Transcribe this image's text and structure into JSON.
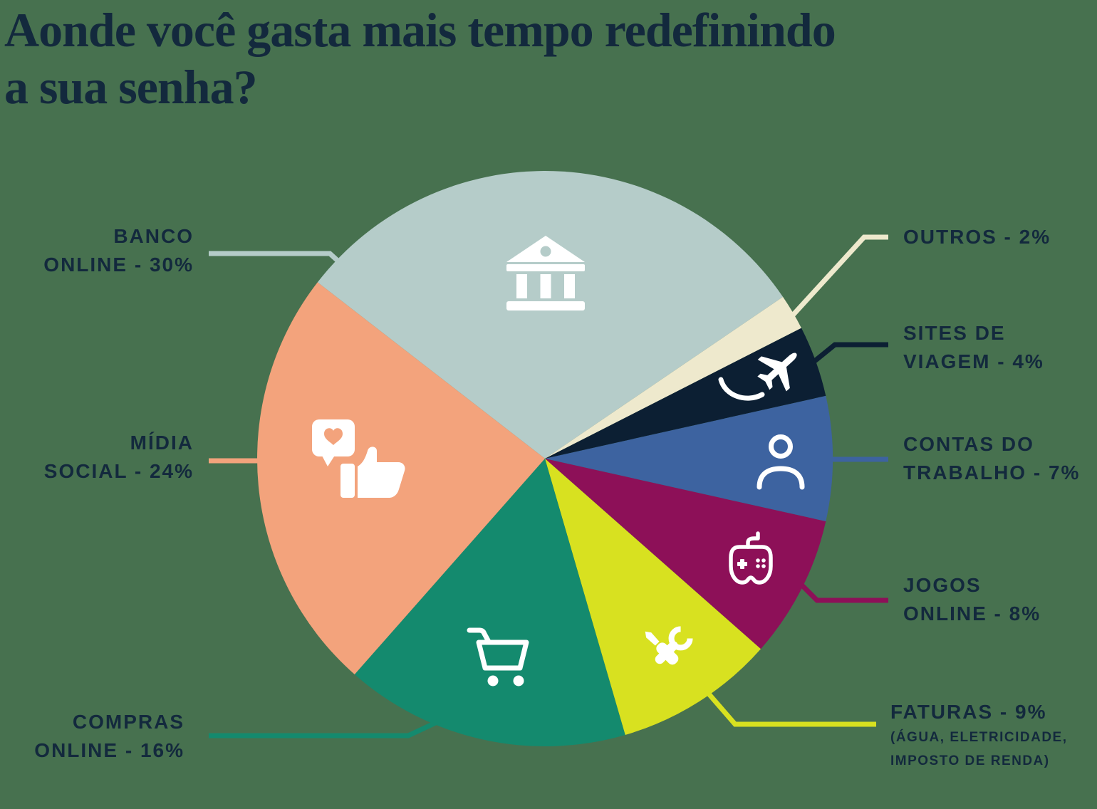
{
  "background_color": "#47714F",
  "text_color": "#13293D",
  "icon_color": "#FFFFFF",
  "title": {
    "line1": "Aonde você gasta mais tempo redefinindo",
    "line2": "a sua senha?"
  },
  "chart_data": {
    "type": "pie",
    "title": "Aonde você gasta mais tempo redefinindo a sua senha?",
    "legend_position": "around-callouts",
    "start_angle_deg": 307.8,
    "total": 100,
    "slices": [
      {
        "label": "BANCO ONLINE",
        "value": 30,
        "color": "#B5CCC9",
        "icon": "bank-icon",
        "lines": [
          "BANCO",
          "ONLINE - 30%"
        ]
      },
      {
        "label": "OUTROS",
        "value": 2,
        "color": "#EEE9CD",
        "icon": null,
        "lines": [
          "OUTROS - 2%"
        ]
      },
      {
        "label": "SITES DE VIAGEM",
        "value": 4,
        "color": "#0C1F33",
        "icon": "airplane-icon",
        "lines": [
          "SITES DE",
          "VIAGEM - 4%"
        ]
      },
      {
        "label": "CONTAS DO TRABALHO",
        "value": 7,
        "color": "#3D63A0",
        "icon": "person-icon",
        "lines": [
          "CONTAS DO",
          "TRABALHO - 7%"
        ]
      },
      {
        "label": "JOGOS ONLINE",
        "value": 8,
        "color": "#8D1058",
        "icon": "game-controller-icon",
        "lines": [
          "JOGOS",
          "ONLINE - 8%"
        ]
      },
      {
        "label": "FATURAS",
        "value": 9,
        "color": "#D8E120",
        "icon": "tools-icon",
        "lines": [
          "FATURAS - 9%"
        ],
        "sub_lines": [
          "(ÁGUA, ELETRICIDADE,",
          "IMPOSTO DE RENDA)"
        ]
      },
      {
        "label": "COMPRAS ONLINE",
        "value": 16,
        "color": "#148A6E",
        "icon": "shopping-cart-icon",
        "lines": [
          "COMPRAS",
          "ONLINE - 16%"
        ]
      },
      {
        "label": "MÍDIA SOCIAL",
        "value": 24,
        "color": "#F3A37C",
        "icon": "social-media-icon",
        "lines": [
          "MÍDIA",
          "SOCIAL - 24%"
        ]
      }
    ]
  }
}
